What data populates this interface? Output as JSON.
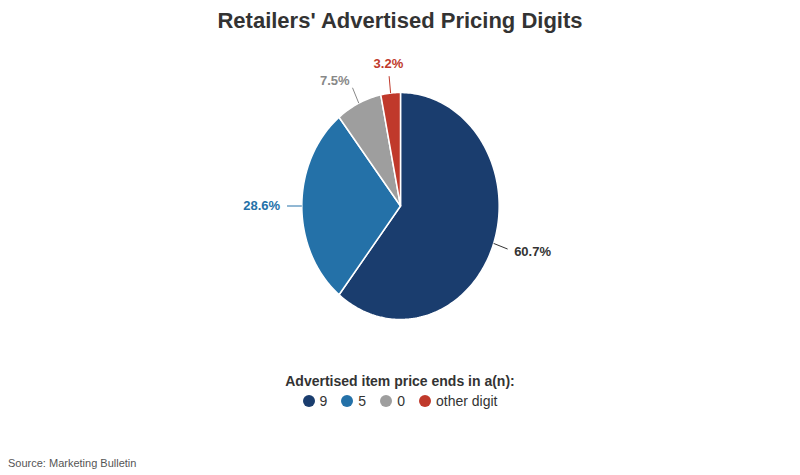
{
  "chart_data": {
    "type": "pie",
    "title": "Retailers' Advertised Pricing Digits",
    "categories": [
      "9",
      "5",
      "0",
      "other digit"
    ],
    "values": [
      60.7,
      28.6,
      7.5,
      3.2
    ],
    "colors": [
      "#1a3d6e",
      "#2471a8",
      "#9e9e9e",
      "#c0392b"
    ],
    "data_labels": true,
    "value_labels": [
      "60.7%",
      "28.6%",
      "7.5%",
      "3.2%"
    ],
    "value_label_colors": [
      "#333333",
      "#2471a8",
      "#888888",
      "#c0392b"
    ],
    "legend": "bottom",
    "legend_title": "Advertised item price ends in a(n):",
    "annotations": [
      "Source: Marketing Bulletin"
    ],
    "background_color": "#ffffff",
    "title_color": "#333333"
  }
}
